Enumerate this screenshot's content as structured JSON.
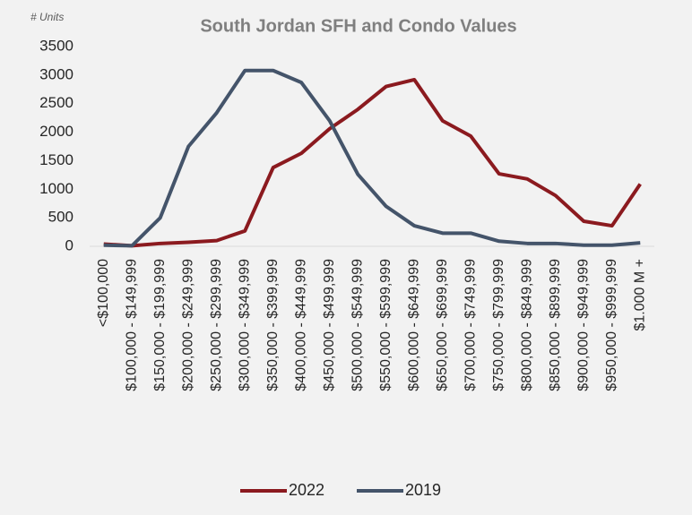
{
  "chart_data": {
    "type": "line",
    "title": "South Jordan SFH and Condo Values",
    "y_label": "# Units",
    "categories": [
      "<$100,000",
      "$100,000 - $149,999",
      "$150,000 - $199,999",
      "$200,000 - $249,999",
      "$250,000 - $299,999",
      "$300,000 - $349,999",
      "$350,000 - $399,999",
      "$400,000 - $449,999",
      "$450,000 - $499,999",
      "$500,000 - $549,999",
      "$550,000 - $599,999",
      "$600,000 - $649,999",
      "$650,000 - $699,999",
      "$700,000 - $749,999",
      "$750,000 - $799,999",
      "$800,000 - $849,999",
      "$850,000 - $899,999",
      "$900,000 - $949,999",
      "$950,000 - $999,999",
      "$1.000 M +"
    ],
    "series": [
      {
        "name": "2022",
        "color": "#8b1a1f",
        "values": [
          40,
          10,
          50,
          70,
          100,
          270,
          1380,
          1630,
          2060,
          2400,
          2800,
          2920,
          2200,
          1930,
          1270,
          1180,
          890,
          440,
          360,
          1090
        ]
      },
      {
        "name": "2019",
        "color": "#44546a",
        "values": [
          20,
          10,
          500,
          1750,
          2340,
          3080,
          3080,
          2870,
          2200,
          1260,
          700,
          360,
          230,
          230,
          90,
          50,
          50,
          20,
          20,
          60
        ]
      }
    ],
    "ylim": [
      0,
      3500
    ],
    "yticks": [
      0,
      500,
      1000,
      1500,
      2000,
      2500,
      3000,
      3500
    ],
    "grid": false,
    "legend": "bottom"
  }
}
